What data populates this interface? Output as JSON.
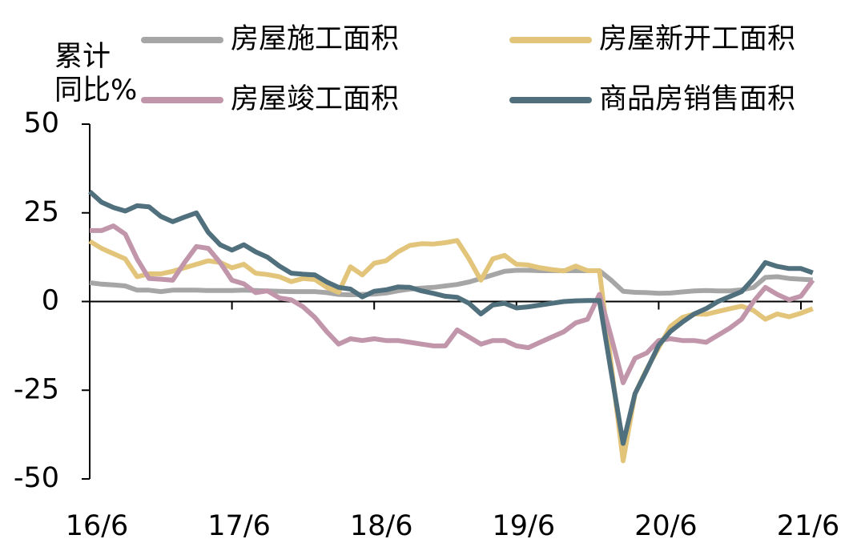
{
  "chart_data": {
    "type": "line",
    "ylabel": [
      "累计",
      "同比%"
    ],
    "categories": [
      "16/6",
      null,
      null,
      null,
      null,
      null,
      null,
      null,
      null,
      null,
      null,
      null,
      "17/6",
      null,
      null,
      null,
      null,
      null,
      null,
      null,
      null,
      null,
      null,
      null,
      "18/6",
      null,
      null,
      null,
      null,
      null,
      null,
      null,
      null,
      null,
      null,
      null,
      "19/6",
      null,
      null,
      null,
      null,
      null,
      null,
      null,
      null,
      null,
      null,
      null,
      "20/6",
      null,
      null,
      null,
      null,
      null,
      null,
      null,
      null,
      null,
      null,
      null,
      "21/6",
      null
    ],
    "series": [
      {
        "name": "房屋施工面积",
        "color": "#a6a6a6",
        "values": [
          5.3,
          4.9,
          4.7,
          4.4,
          3.2,
          3.2,
          2.8,
          3.2,
          3.2,
          3.2,
          3.1,
          3.1,
          3.1,
          3.2,
          3.1,
          3.0,
          2.9,
          2.8,
          2.8,
          2.8,
          2.5,
          2.0,
          1.9,
          2.0,
          2.1,
          2.4,
          3.0,
          3.5,
          3.8,
          4.0,
          4.4,
          4.8,
          5.5,
          6.5,
          7.5,
          8.5,
          8.8,
          8.8,
          8.7,
          8.7,
          8.7,
          8.7,
          8.7,
          8.7,
          6,
          2.9,
          2.6,
          2.5,
          2.3,
          2.4,
          2.7,
          3.0,
          3.1,
          3.0,
          3.0,
          3.3,
          4.0,
          6.8,
          7.0,
          6.5,
          6.3,
          6.1
        ]
      },
      {
        "name": "房屋新开工面积",
        "color": "#e2c57a",
        "values": [
          17,
          15,
          13.5,
          12,
          7,
          7.8,
          7.8,
          8.5,
          9.5,
          10.5,
          11.5,
          11,
          9.5,
          10.5,
          8,
          7.6,
          7,
          5.6,
          6.5,
          6.2,
          4,
          2.6,
          9.8,
          7.5,
          10.8,
          11.5,
          14,
          15.8,
          16.3,
          16.2,
          16.6,
          17.2,
          12,
          6,
          12,
          13,
          10.5,
          10.3,
          9.5,
          9,
          8.6,
          10,
          8.7,
          8.7,
          -18,
          -44.9,
          -26,
          -19,
          -13,
          -7,
          -4.5,
          -3.5,
          -3.6,
          -2.8,
          -2,
          -1.3,
          -2.5,
          -5,
          -3.5,
          -4.3,
          -3.3,
          -2
        ]
      },
      {
        "name": "房屋竣工面积",
        "color": "#c196ab",
        "values": [
          20,
          20,
          21.3,
          19,
          12,
          6.5,
          6.3,
          6,
          11,
          15.5,
          15,
          11,
          6,
          5,
          2.5,
          3,
          1,
          0.5,
          -1.5,
          -4.5,
          -8.5,
          -12,
          -10.5,
          -11,
          -10.5,
          -11,
          -11,
          -11.5,
          -12,
          -12.5,
          -12.5,
          -8,
          -10,
          -12,
          -11,
          -11,
          -12.5,
          -13,
          -11.5,
          -10,
          -8.5,
          -6,
          -5,
          2,
          -10,
          -22.9,
          -16,
          -14.5,
          -11,
          -10.5,
          -11,
          -11,
          -11.5,
          -9.5,
          -7.5,
          -5,
          0,
          4,
          2,
          0.5,
          1.5,
          6
        ]
      },
      {
        "name": "商品房销售面积",
        "color": "#51707d",
        "values": [
          31,
          28,
          26.5,
          25.5,
          27,
          26.7,
          24,
          22.5,
          23.8,
          25,
          19.5,
          16,
          14.5,
          16,
          14,
          12.5,
          10,
          8,
          7.7,
          7.5,
          5.5,
          4,
          3.5,
          1.3,
          2.9,
          3.3,
          4.1,
          4,
          3,
          2.3,
          1.5,
          1.2,
          -0.5,
          -3.5,
          -1,
          -0.5,
          -1.8,
          -1.5,
          -1,
          -0.5,
          0,
          0.2,
          0.3,
          0.3,
          -20,
          -40,
          -26,
          -19.3,
          -12.3,
          -8.4,
          -5.8,
          -3.5,
          -2,
          0,
          1.4,
          2.8,
          6.5,
          11,
          9.9,
          9.3,
          9.3,
          8.1
        ]
      }
    ],
    "ylim": [
      -50,
      50
    ],
    "yticks": [
      50,
      25,
      0,
      -25,
      -50
    ],
    "grid": false,
    "legend": "top"
  }
}
